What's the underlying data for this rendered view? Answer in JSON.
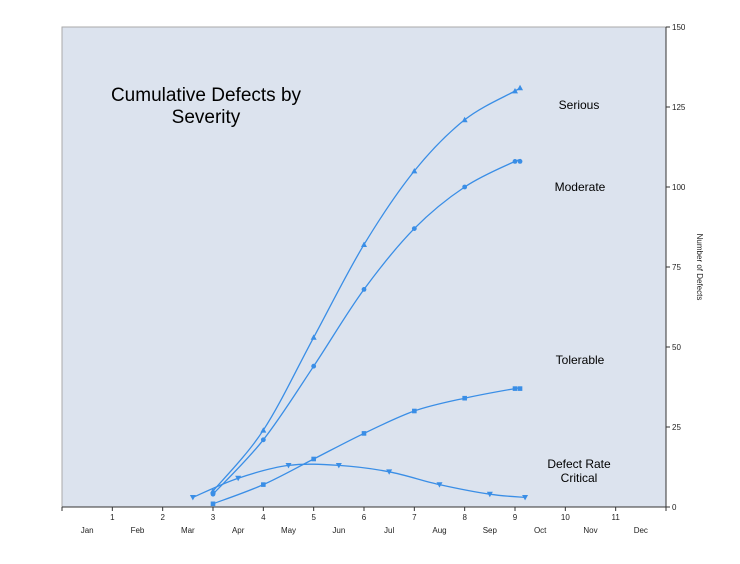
{
  "chart_data": {
    "type": "line",
    "title": [
      "Cumulative Defects by",
      "Severity"
    ],
    "ylabel": "Number of Defects",
    "ylim": [
      0,
      150
    ],
    "y_ticks": [
      0,
      25,
      50,
      75,
      100,
      125,
      150
    ],
    "y_axis_position": "right",
    "xlim": [
      0,
      12
    ],
    "x_ticks_numeric": [
      {
        "x": 1,
        "label": "1"
      },
      {
        "x": 2,
        "label": "2"
      },
      {
        "x": 3,
        "label": "3"
      },
      {
        "x": 4,
        "label": "4"
      },
      {
        "x": 5,
        "label": "5"
      },
      {
        "x": 6,
        "label": "6"
      },
      {
        "x": 7,
        "label": "7"
      },
      {
        "x": 8,
        "label": "8"
      },
      {
        "x": 9,
        "label": "9"
      },
      {
        "x": 10,
        "label": "10"
      },
      {
        "x": 11,
        "label": "11"
      }
    ],
    "x_ticks_months": [
      {
        "x": 0.5,
        "label": "Jan"
      },
      {
        "x": 1.5,
        "label": "Feb"
      },
      {
        "x": 2.5,
        "label": "Mar"
      },
      {
        "x": 3.5,
        "label": "Apr"
      },
      {
        "x": 4.5,
        "label": "May"
      },
      {
        "x": 5.5,
        "label": "Jun"
      },
      {
        "x": 6.5,
        "label": "Jul"
      },
      {
        "x": 7.5,
        "label": "Aug"
      },
      {
        "x": 8.5,
        "label": "Sep"
      },
      {
        "x": 9.5,
        "label": "Oct"
      },
      {
        "x": 10.5,
        "label": "Nov"
      },
      {
        "x": 11.5,
        "label": "Dec"
      }
    ],
    "grid": false,
    "series": [
      {
        "name": "Serious",
        "marker": "triangle-up",
        "points": [
          [
            3,
            5
          ],
          [
            4,
            24
          ],
          [
            5,
            53
          ],
          [
            6,
            82
          ],
          [
            7,
            105
          ],
          [
            8,
            121
          ],
          [
            9,
            130
          ],
          [
            9.1,
            131
          ]
        ]
      },
      {
        "name": "Moderate",
        "marker": "circle",
        "points": [
          [
            3,
            4
          ],
          [
            4,
            21
          ],
          [
            5,
            44
          ],
          [
            6,
            68
          ],
          [
            7,
            87
          ],
          [
            8,
            100
          ],
          [
            9,
            108
          ],
          [
            9.1,
            108
          ]
        ]
      },
      {
        "name": "Tolerable",
        "marker": "square",
        "points": [
          [
            3,
            1
          ],
          [
            4,
            7
          ],
          [
            5,
            15
          ],
          [
            6,
            23
          ],
          [
            7,
            30
          ],
          [
            8,
            34
          ],
          [
            9,
            37
          ],
          [
            9.1,
            37
          ]
        ]
      },
      {
        "name": "Defect Rate Critical",
        "label_lines": [
          "Defect Rate",
          "Critical"
        ],
        "marker": "triangle-down",
        "points": [
          [
            2.6,
            3
          ],
          [
            3.5,
            9
          ],
          [
            4.5,
            13
          ],
          [
            5.5,
            13
          ],
          [
            6.5,
            11
          ],
          [
            7.5,
            7
          ],
          [
            8.5,
            4
          ],
          [
            9.2,
            3
          ]
        ]
      }
    ],
    "colors": {
      "line": "#3a8ee6",
      "plot_background": "#dce3ee",
      "axis": "#333333"
    }
  }
}
